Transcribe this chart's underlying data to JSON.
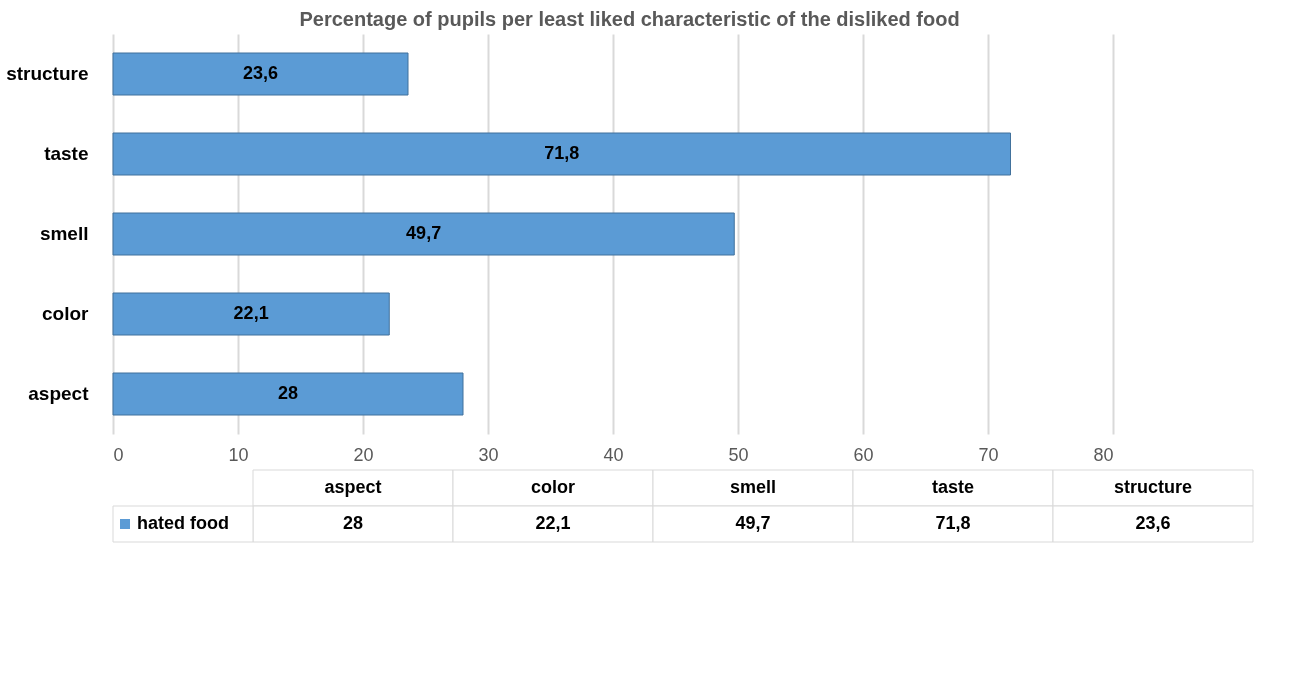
{
  "chart_data": {
    "type": "bar",
    "orientation": "horizontal",
    "title": "Percentage of pupils per least liked characteristic of the disliked food",
    "categories": [
      "structure",
      "taste",
      "smell",
      "color",
      "aspect"
    ],
    "series": [
      {
        "name": "hated food",
        "color": "#5b9bd5",
        "values": [
          23.6,
          71.8,
          49.7,
          22.1,
          28
        ],
        "value_labels": [
          "23,6",
          "71,8",
          "49,7",
          "22,1",
          "28"
        ]
      }
    ],
    "xlim": [
      0,
      80
    ],
    "xticks": [
      0,
      10,
      20,
      30,
      40,
      50,
      60,
      70,
      80
    ],
    "grid": "x",
    "legend": "bottom"
  }
}
